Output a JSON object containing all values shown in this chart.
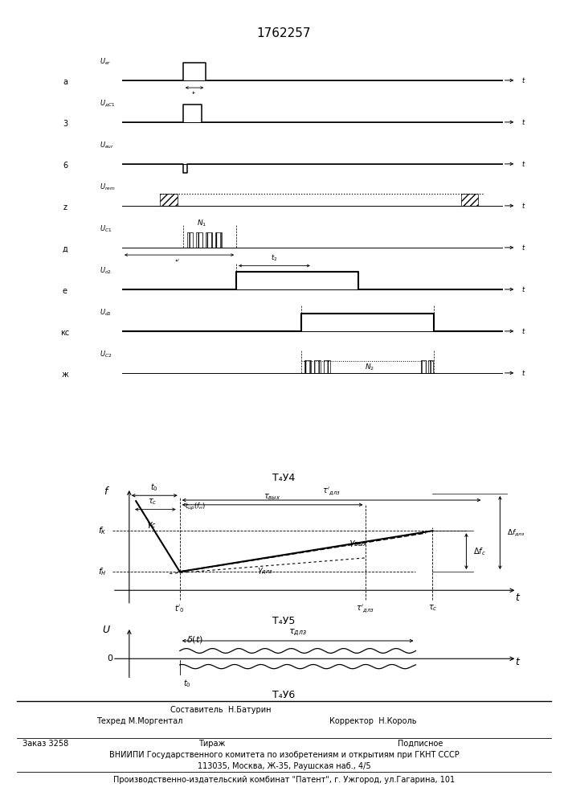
{
  "patent_number": "1762257",
  "fig4_caption": "Τ₄У4",
  "fig5_caption": "Τ₄У5",
  "fig6_caption": "Τ₄У6",
  "panel_letters": [
    "a",
    "3",
    "6",
    "z",
    "д",
    "e",
    "кс",
    "ж"
  ],
  "waveform_ylabels": [
    "$U_{er}$",
    "$U_{дС1}$",
    "$U_{eur}$",
    "$U_{rem}$",
    "$U_{C1}$",
    "$U_{o2}$",
    "$U_{d2}$",
    "$U_{C2}$"
  ],
  "footer_line1a": "Составитель  Н.Батурин",
  "footer_line1b": "Техред М.Моргентал",
  "footer_line1c": "Корректор  Н.Король",
  "footer_order": "Заказ 3258",
  "footer_tirazh": "Тираж",
  "footer_podpisnoe": "Подписное",
  "footer_vniipи": "ВНИИПИ Государственного комитета по изобретениям и открытиям при ГКНТ СССР",
  "footer_addr": "113035, Москва, Ж-35, Раушская наб., 4/5",
  "footer_patent": "Производственно-издательский комбинат \"Патент\", г. Ужгород, ул.Гагарина, 101"
}
